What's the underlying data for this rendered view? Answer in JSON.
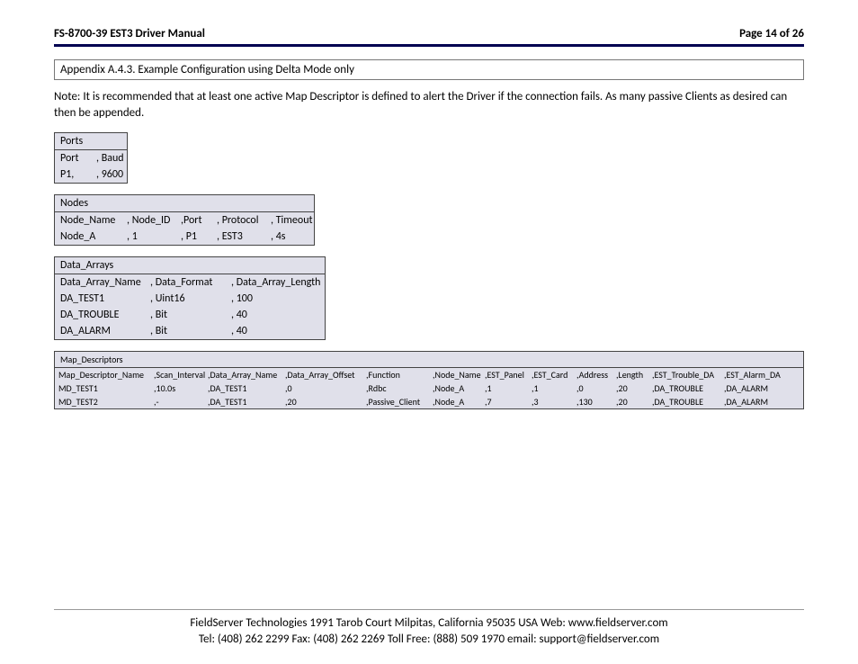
{
  "header": {
    "left": "FS-8700-39 EST3 Driver Manual",
    "right": "Page 14 of 26"
  },
  "section_title": "Appendix A.4.3.  Example Configuration using Delta Mode only",
  "note": "Note:  It is recommended that at least one active Map Descriptor is defined to alert the Driver if the connection fails.  As many passive Clients as desired can then be appended.",
  "ports": {
    "title": "Ports",
    "row_h": {
      "c0": "Port",
      "c1": ", Baud"
    },
    "row_0": {
      "c0": "P1,",
      "c1": ", 9600"
    }
  },
  "nodes": {
    "title": "Nodes",
    "row_h": {
      "c0": "Node_Name",
      "c1": ", Node_ID",
      "c2": ",Port",
      "c3": ", Protocol",
      "c4": ", Timeout"
    },
    "row_0": {
      "c0": "Node_A",
      "c1": ", 1",
      "c2": ", P1",
      "c3": ", EST3",
      "c4": ", 4s"
    }
  },
  "data_arrays": {
    "title": "Data_Arrays",
    "row_h": {
      "c0": "Data_Array_Name",
      "c1": ", Data_Format",
      "c2": ", Data_Array_Length"
    },
    "row_0": {
      "c0": "DA_TEST1",
      "c1": ", Uint16",
      "c2": ", 100"
    },
    "row_1": {
      "c0": "DA_TROUBLE",
      "c1": ", Bit",
      "c2": ", 40"
    },
    "row_2": {
      "c0": "DA_ALARM",
      "c1": ", Bit",
      "c2": ", 40"
    }
  },
  "map_desc": {
    "title": "Map_Descriptors",
    "row_h": {
      "c0": "Map_Descriptor_Name",
      "c1": ",Scan_Interval",
      "c2": ",Data_Array_Name",
      "c3": ",Data_Array_Offset",
      "c4": ",Function",
      "c5": ",Node_Name",
      "c6": ",EST_Panel",
      "c7": ",EST_Card",
      "c8": ",Address",
      "c9": ",Length",
      "c10": ",EST_Trouble_DA",
      "c11": ",EST_Alarm_DA"
    },
    "row_0": {
      "c0": "MD_TEST1",
      "c1": ",10.0s",
      "c2": ",DA_TEST1",
      "c3": ",0",
      "c4": ",Rdbc",
      "c5": ",Node_A",
      "c6": ",1",
      "c7": ",1",
      "c8": ",0",
      "c9": ",20",
      "c10": ",DA_TROUBLE",
      "c11": ",DA_ALARM"
    },
    "row_1": {
      "c0": "MD_TEST2",
      "c1": ",-",
      "c2": ",DA_TEST1",
      "c3": ",20",
      "c4": ",Passive_Client",
      "c5": ",Node_A",
      "c6": ",7",
      "c7": ",3",
      "c8": ",130",
      "c9": ",20",
      "c10": ",DA_TROUBLE",
      "c11": ",DA_ALARM"
    }
  },
  "footer": {
    "line1": "FieldServer Technologies 1991 Tarob Court Milpitas, California 95035 USA   Web: www.fieldserver.com",
    "line2": "Tel: (408) 262 2299   Fax: (408) 262 2269   Toll Free: (888) 509 1970   email: support@fieldserver.com"
  },
  "style": {
    "page_bg": "#ffffff",
    "table_bg": "#e0e0ea",
    "border_color": "#444444",
    "header_rule": "#000050",
    "font_body": 13,
    "font_table": 12,
    "font_table_wide": 10,
    "ports_widths": [
      40,
      40
    ],
    "nodes_widths": [
      74,
      60,
      40,
      60,
      54
    ],
    "da_widths": [
      100,
      90,
      110
    ],
    "md_widths": [
      106,
      60,
      86,
      90,
      74,
      58,
      52,
      50,
      44,
      40,
      80,
      72
    ]
  }
}
